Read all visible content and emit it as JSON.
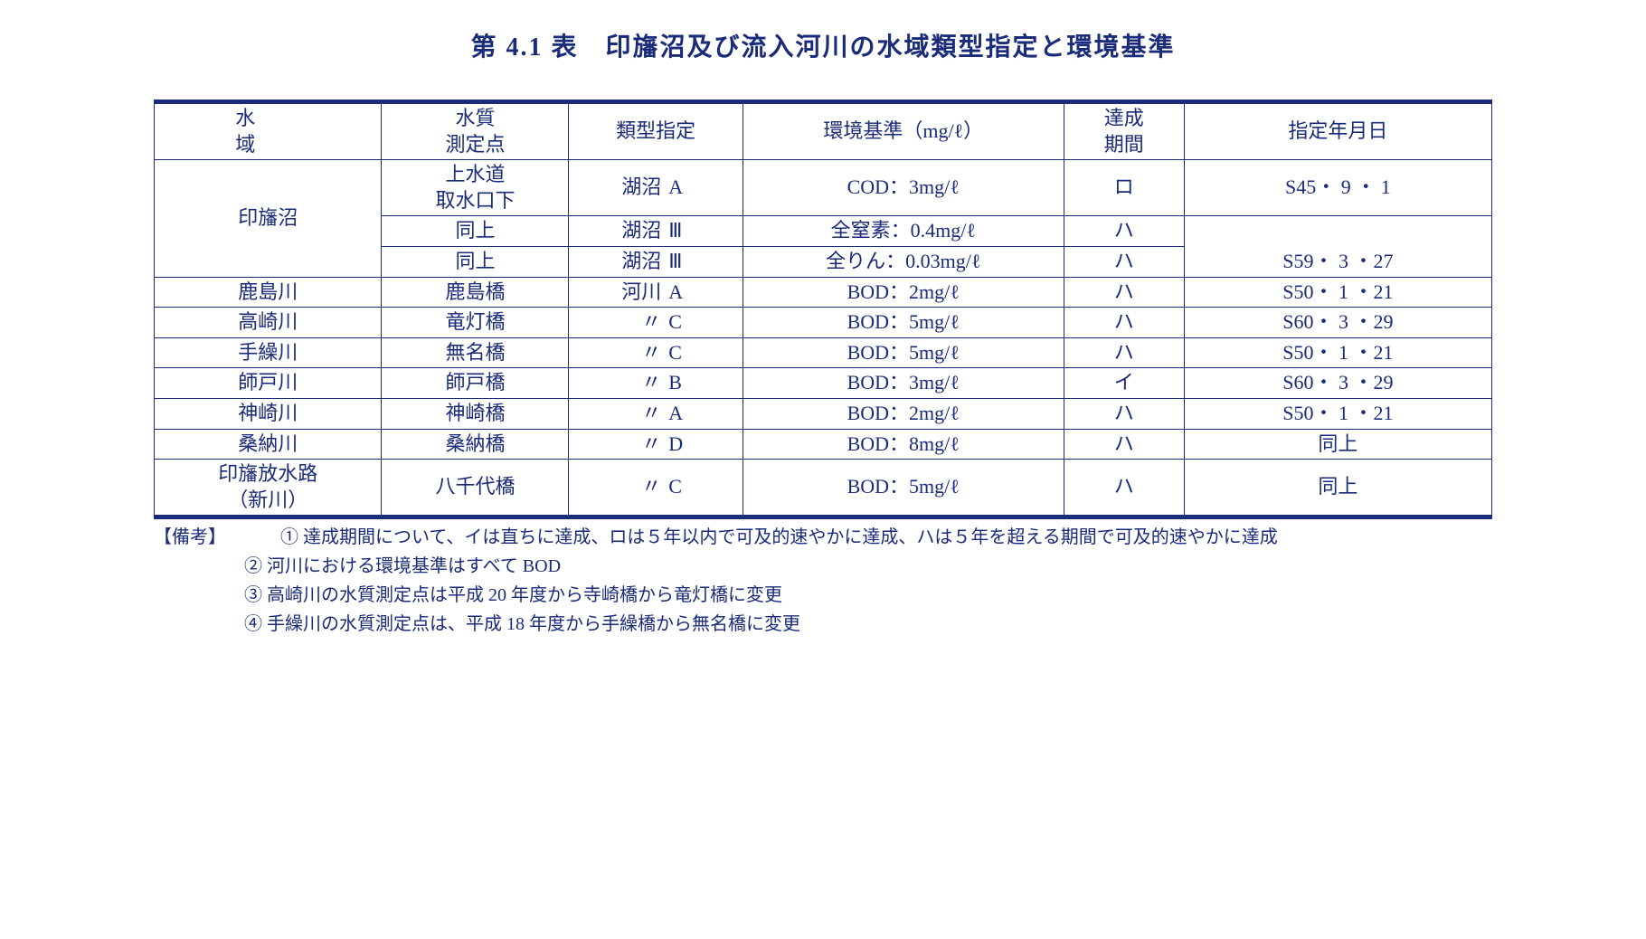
{
  "colors": {
    "text": "#1a2b7a",
    "border": "#1a2b7a",
    "background": "#ffffff"
  },
  "typography": {
    "title_fontsize": 28,
    "body_fontsize": 22,
    "notes_fontsize": 20,
    "font_family": "MS PMincho"
  },
  "title": "第 4.1 表　印旛沼及び流入河川の水域類型指定と環境基準",
  "table": {
    "columns": [
      "水　　域",
      "水質\n測定点",
      "類型指定",
      "環境基準（mg/ℓ）",
      "達成\n期間",
      "指定年月日"
    ],
    "column_widths": [
      "17%",
      "14%",
      "13%",
      "24%",
      "9%",
      "23%"
    ],
    "rows": [
      {
        "waterbody": "印旛沼",
        "rowspan": 3,
        "point": "上水道\n取水口下",
        "type_l": "湖沼",
        "type_r": "A",
        "standard": "COD：3mg/ℓ",
        "period": "ロ",
        "date": "S45・ 9 ・ 1"
      },
      {
        "point": "同上",
        "type_l": "湖沼",
        "type_r": "Ⅲ",
        "standard": "全窒素：0.4mg/ℓ",
        "period": "ハ",
        "date": "",
        "date_rowspan": 2
      },
      {
        "point": "同上",
        "type_l": "湖沼",
        "type_r": "Ⅲ",
        "standard": "全りん：0.03mg/ℓ",
        "period": "ハ",
        "date": "S59・ 3 ・27"
      },
      {
        "waterbody": "鹿島川",
        "point": "鹿島橋",
        "type_l": "河川",
        "type_r": "A",
        "standard": "BOD：2mg/ℓ",
        "period": "ハ",
        "date": "S50・ 1 ・21"
      },
      {
        "waterbody": "高崎川",
        "point": "竜灯橋",
        "type_l": "〃",
        "type_r": "C",
        "standard": "BOD：5mg/ℓ",
        "period": "ハ",
        "date": "S60・ 3 ・29"
      },
      {
        "waterbody": "手繰川",
        "point": "無名橋",
        "type_l": "〃",
        "type_r": "C",
        "standard": "BOD：5mg/ℓ",
        "period": "ハ",
        "date": "S50・ 1 ・21"
      },
      {
        "waterbody": "師戸川",
        "point": "師戸橋",
        "type_l": "〃",
        "type_r": "B",
        "standard": "BOD：3mg/ℓ",
        "period": "イ",
        "date": "S60・ 3 ・29"
      },
      {
        "waterbody": "神崎川",
        "point": "神崎橋",
        "type_l": "〃",
        "type_r": "A",
        "standard": "BOD：2mg/ℓ",
        "period": "ハ",
        "date": "S50・ 1 ・21"
      },
      {
        "waterbody": "桑納川",
        "point": "桑納橋",
        "type_l": "〃",
        "type_r": "D",
        "standard": "BOD：8mg/ℓ",
        "period": "ハ",
        "date": "同上"
      },
      {
        "waterbody": "印旛放水路\n（新川）",
        "point": "八千代橋",
        "type_l": "〃",
        "type_r": "C",
        "standard": "BOD：5mg/ℓ",
        "period": "ハ",
        "date": "同上"
      }
    ]
  },
  "notes": {
    "lead": "【備考】",
    "items": [
      "① 達成期間について、イは直ちに達成、ロは５年以内で可及的速やかに達成、ハは５年を超える期間で可及的速やかに達成",
      "② 河川における環境基準はすべて BOD",
      "③ 高崎川の水質測定点は平成 20 年度から寺崎橋から竜灯橋に変更",
      "④ 手繰川の水質測定点は、平成 18 年度から手繰橋から無名橋に変更"
    ]
  }
}
